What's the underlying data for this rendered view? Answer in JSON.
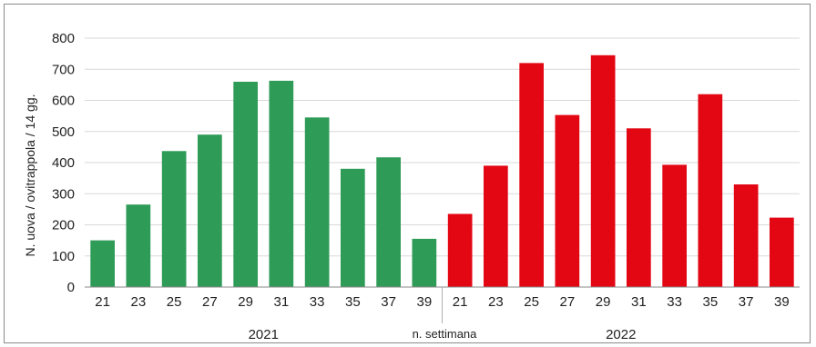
{
  "chart_data": {
    "type": "bar",
    "ylabel": "N. uova / ovitrappola / 14 gg.",
    "xlabel": "n. settimana",
    "ylim": [
      0,
      800
    ],
    "yticks": [
      0,
      100,
      200,
      300,
      400,
      500,
      600,
      700,
      800
    ],
    "grid": true,
    "groups": [
      {
        "name": "2021",
        "color": "#2e9b57",
        "categories": [
          "21",
          "23",
          "25",
          "27",
          "29",
          "31",
          "33",
          "35",
          "37",
          "39"
        ],
        "values": [
          150,
          265,
          437,
          490,
          660,
          663,
          545,
          380,
          417,
          155
        ]
      },
      {
        "name": "2022",
        "color": "#e30613",
        "categories": [
          "21",
          "23",
          "25",
          "27",
          "29",
          "31",
          "33",
          "35",
          "37",
          "39"
        ],
        "values": [
          235,
          390,
          720,
          553,
          745,
          510,
          393,
          620,
          330,
          223
        ]
      }
    ]
  }
}
